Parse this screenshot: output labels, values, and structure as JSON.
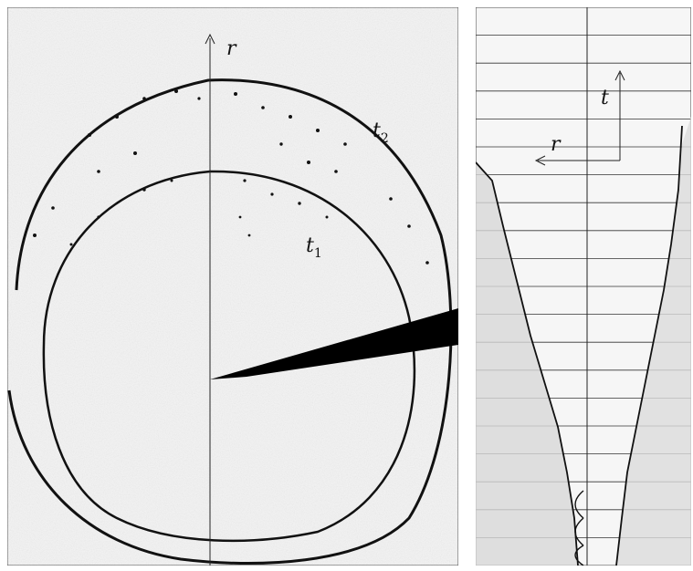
{
  "left_panel": {
    "axis_label": "r",
    "label_t1_base": "t",
    "label_t1_sub": "1",
    "label_t2_base": "t",
    "label_t2_sub": "2"
  },
  "right_panel": {
    "axis_t_label": "t",
    "axis_r_label": "r",
    "strip_count": 20
  },
  "colors": {
    "background": "#f2f2f2",
    "ink": "#111111",
    "frame": "#333333"
  }
}
